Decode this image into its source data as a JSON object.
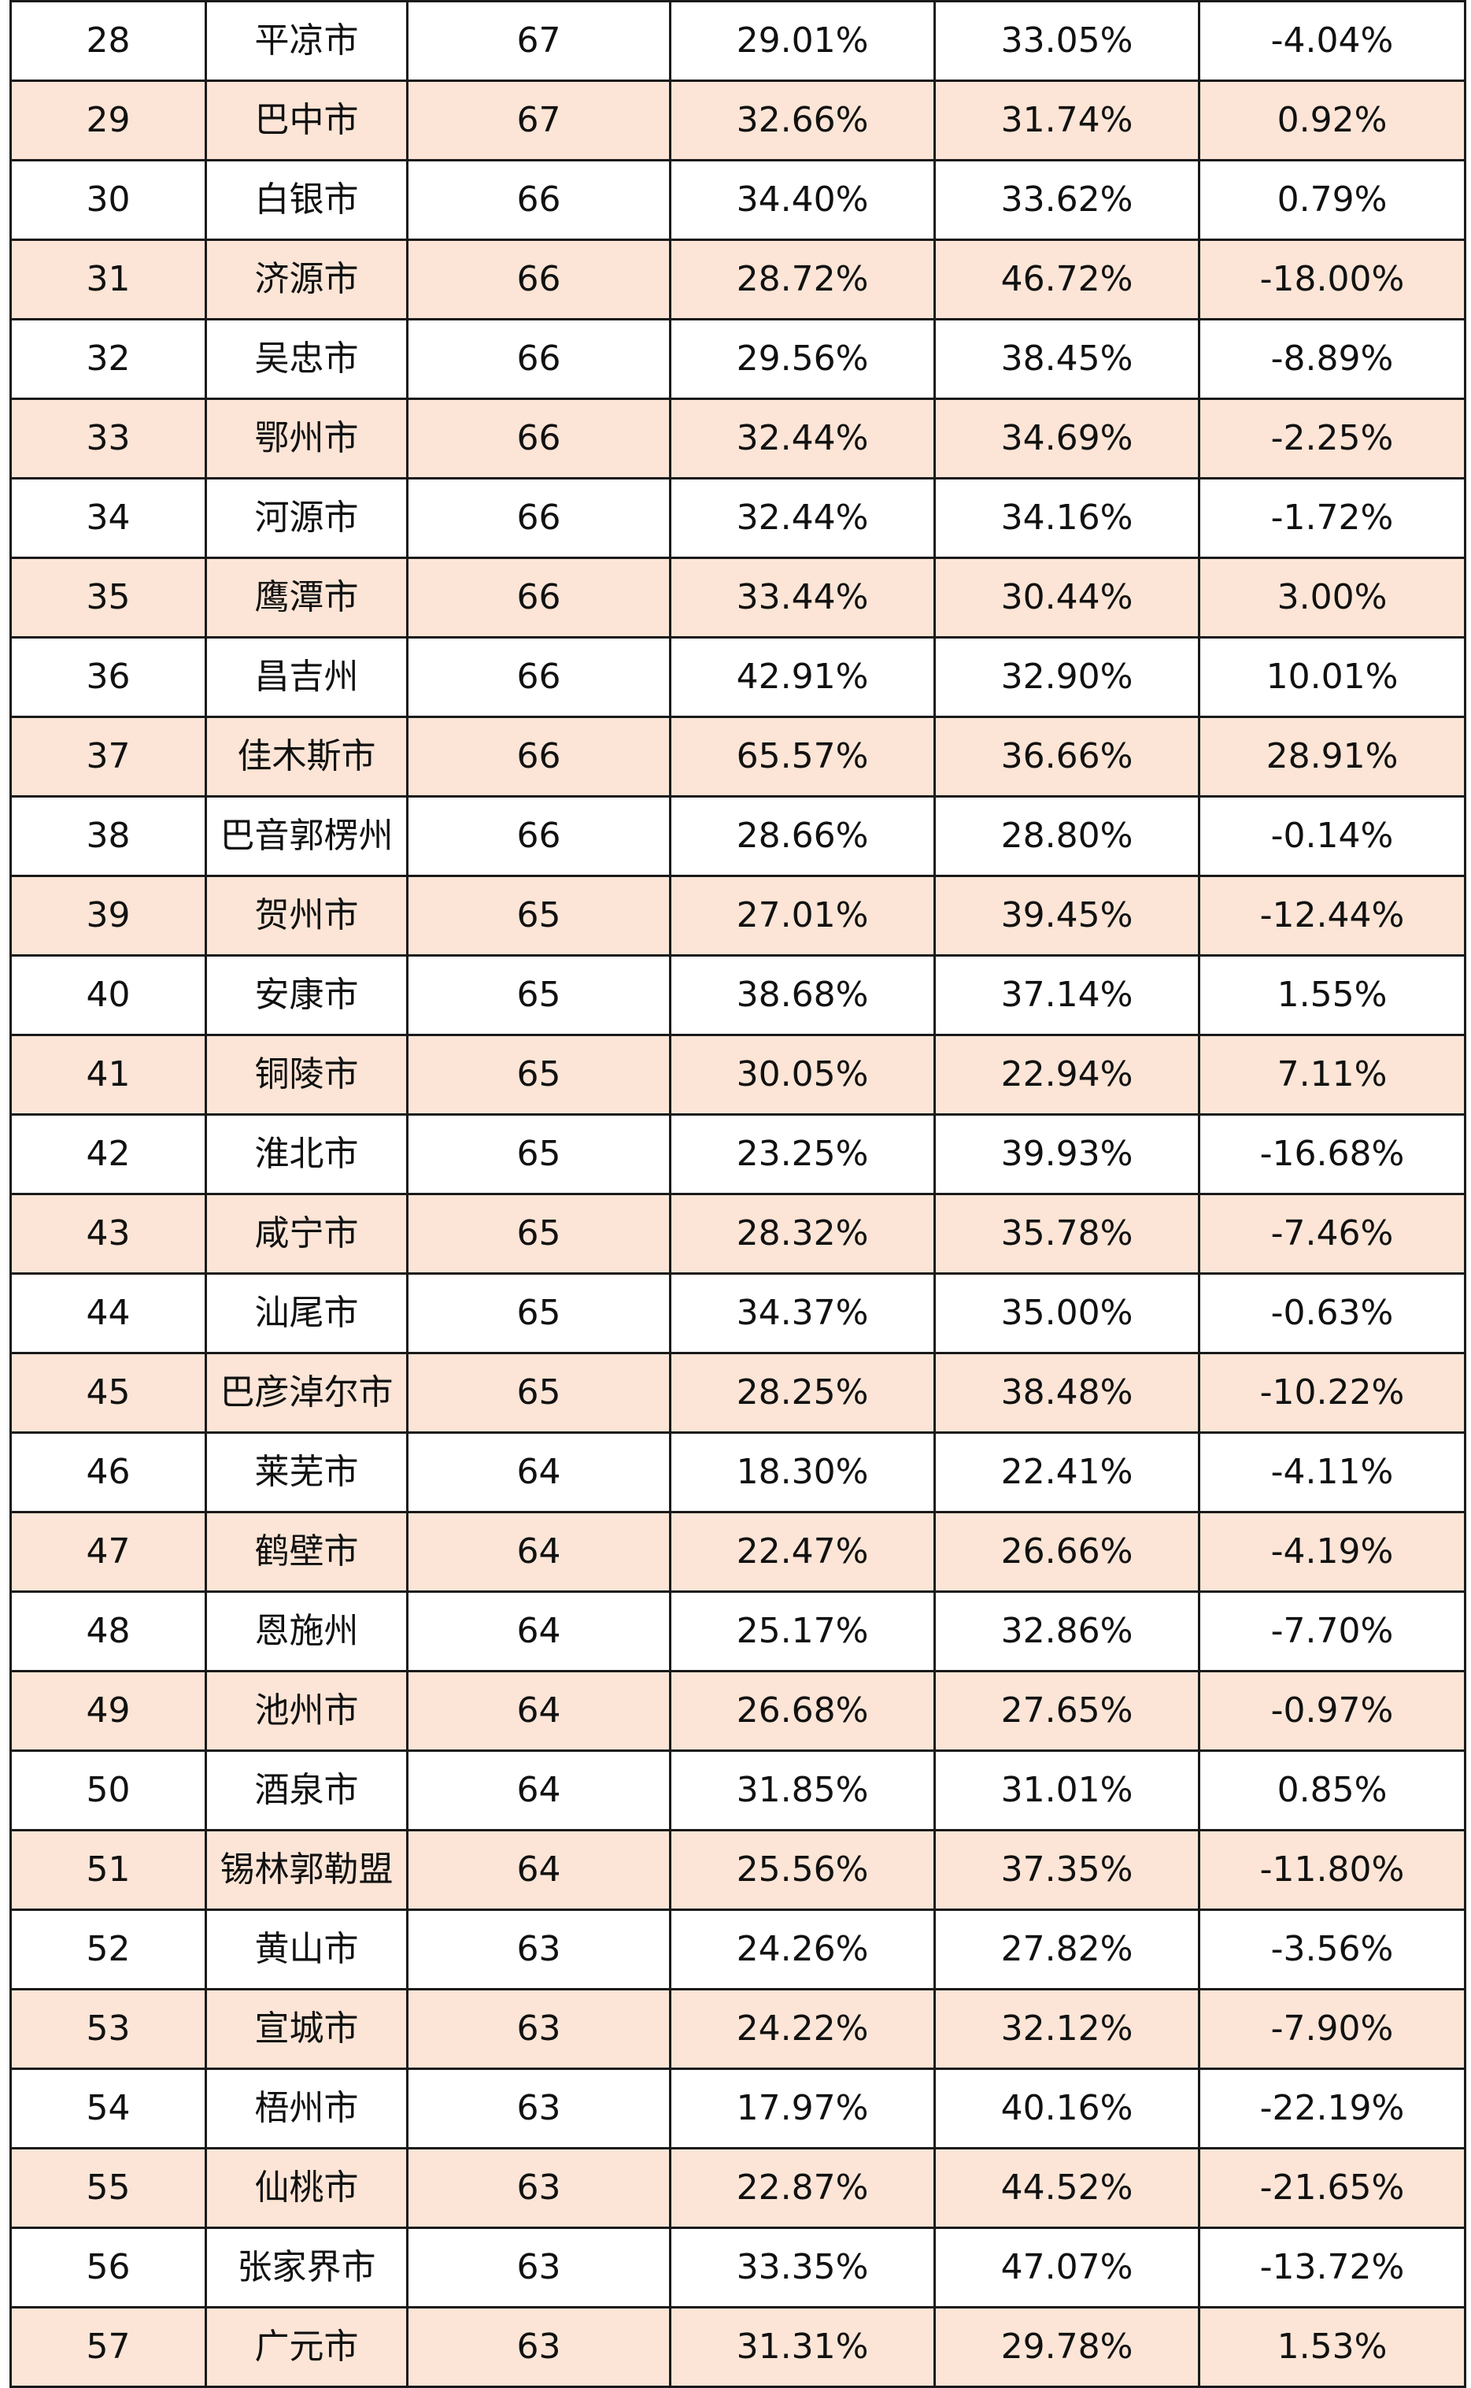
{
  "table": {
    "rows": [
      {
        "rank": "28",
        "city": "平凉市",
        "score": "67",
        "pct_a": "29.01%",
        "pct_b": "33.05%",
        "diff": "-4.04%"
      },
      {
        "rank": "29",
        "city": "巴中市",
        "score": "67",
        "pct_a": "32.66%",
        "pct_b": "31.74%",
        "diff": "0.92%"
      },
      {
        "rank": "30",
        "city": "白银市",
        "score": "66",
        "pct_a": "34.40%",
        "pct_b": "33.62%",
        "diff": "0.79%"
      },
      {
        "rank": "31",
        "city": "济源市",
        "score": "66",
        "pct_a": "28.72%",
        "pct_b": "46.72%",
        "diff": "-18.00%"
      },
      {
        "rank": "32",
        "city": "吴忠市",
        "score": "66",
        "pct_a": "29.56%",
        "pct_b": "38.45%",
        "diff": "-8.89%"
      },
      {
        "rank": "33",
        "city": "鄂州市",
        "score": "66",
        "pct_a": "32.44%",
        "pct_b": "34.69%",
        "diff": "-2.25%"
      },
      {
        "rank": "34",
        "city": "河源市",
        "score": "66",
        "pct_a": "32.44%",
        "pct_b": "34.16%",
        "diff": "-1.72%"
      },
      {
        "rank": "35",
        "city": "鹰潭市",
        "score": "66",
        "pct_a": "33.44%",
        "pct_b": "30.44%",
        "diff": "3.00%"
      },
      {
        "rank": "36",
        "city": "昌吉州",
        "score": "66",
        "pct_a": "42.91%",
        "pct_b": "32.90%",
        "diff": "10.01%"
      },
      {
        "rank": "37",
        "city": "佳木斯市",
        "score": "66",
        "pct_a": "65.57%",
        "pct_b": "36.66%",
        "diff": "28.91%"
      },
      {
        "rank": "38",
        "city": "巴音郭楞州",
        "score": "66",
        "pct_a": "28.66%",
        "pct_b": "28.80%",
        "diff": "-0.14%"
      },
      {
        "rank": "39",
        "city": "贺州市",
        "score": "65",
        "pct_a": "27.01%",
        "pct_b": "39.45%",
        "diff": "-12.44%"
      },
      {
        "rank": "40",
        "city": "安康市",
        "score": "65",
        "pct_a": "38.68%",
        "pct_b": "37.14%",
        "diff": "1.55%"
      },
      {
        "rank": "41",
        "city": "铜陵市",
        "score": "65",
        "pct_a": "30.05%",
        "pct_b": "22.94%",
        "diff": "7.11%"
      },
      {
        "rank": "42",
        "city": "淮北市",
        "score": "65",
        "pct_a": "23.25%",
        "pct_b": "39.93%",
        "diff": "-16.68%"
      },
      {
        "rank": "43",
        "city": "咸宁市",
        "score": "65",
        "pct_a": "28.32%",
        "pct_b": "35.78%",
        "diff": "-7.46%"
      },
      {
        "rank": "44",
        "city": "汕尾市",
        "score": "65",
        "pct_a": "34.37%",
        "pct_b": "35.00%",
        "diff": "-0.63%"
      },
      {
        "rank": "45",
        "city": "巴彦淖尔市",
        "score": "65",
        "pct_a": "28.25%",
        "pct_b": "38.48%",
        "diff": "-10.22%"
      },
      {
        "rank": "46",
        "city": "莱芜市",
        "score": "64",
        "pct_a": "18.30%",
        "pct_b": "22.41%",
        "diff": "-4.11%"
      },
      {
        "rank": "47",
        "city": "鹤壁市",
        "score": "64",
        "pct_a": "22.47%",
        "pct_b": "26.66%",
        "diff": "-4.19%"
      },
      {
        "rank": "48",
        "city": "恩施州",
        "score": "64",
        "pct_a": "25.17%",
        "pct_b": "32.86%",
        "diff": "-7.70%"
      },
      {
        "rank": "49",
        "city": "池州市",
        "score": "64",
        "pct_a": "26.68%",
        "pct_b": "27.65%",
        "diff": "-0.97%"
      },
      {
        "rank": "50",
        "city": "酒泉市",
        "score": "64",
        "pct_a": "31.85%",
        "pct_b": "31.01%",
        "diff": "0.85%"
      },
      {
        "rank": "51",
        "city": "锡林郭勒盟",
        "score": "64",
        "pct_a": "25.56%",
        "pct_b": "37.35%",
        "diff": "-11.80%"
      },
      {
        "rank": "52",
        "city": "黄山市",
        "score": "63",
        "pct_a": "24.26%",
        "pct_b": "27.82%",
        "diff": "-3.56%"
      },
      {
        "rank": "53",
        "city": "宣城市",
        "score": "63",
        "pct_a": "24.22%",
        "pct_b": "32.12%",
        "diff": "-7.90%"
      },
      {
        "rank": "54",
        "city": "梧州市",
        "score": "63",
        "pct_a": "17.97%",
        "pct_b": "40.16%",
        "diff": "-22.19%"
      },
      {
        "rank": "55",
        "city": "仙桃市",
        "score": "63",
        "pct_a": "22.87%",
        "pct_b": "44.52%",
        "diff": "-21.65%"
      },
      {
        "rank": "56",
        "city": "张家界市",
        "score": "63",
        "pct_a": "33.35%",
        "pct_b": "47.07%",
        "diff": "-13.72%"
      },
      {
        "rank": "57",
        "city": "广元市",
        "score": "63",
        "pct_a": "31.31%",
        "pct_b": "29.78%",
        "diff": "1.53%"
      }
    ]
  },
  "colors": {
    "shaded_row": "#fce5d6",
    "plain_row": "#ffffff",
    "grid_line": "#1a1a1a",
    "text": "#111111"
  }
}
